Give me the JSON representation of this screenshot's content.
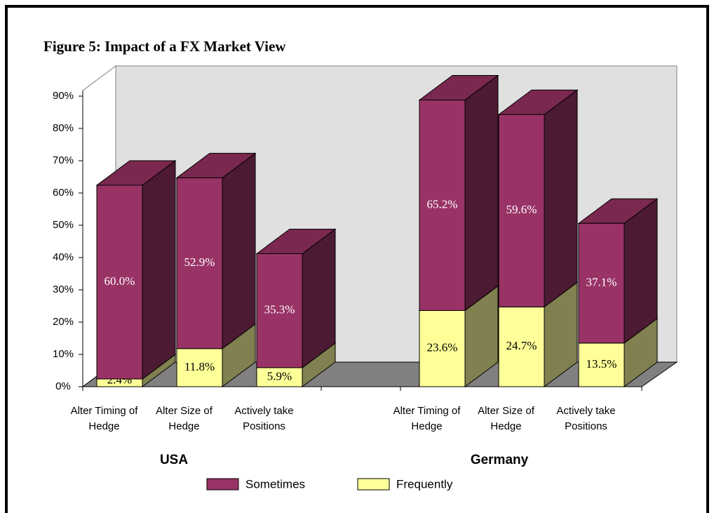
{
  "chart_data": {
    "type": "bar",
    "title": "Figure 5: Impact of a FX Market View",
    "categories": [
      "Alter Timing of Hedge",
      "Alter Size of Hedge",
      "Actively take Positions",
      "Alter Timing of Hedge",
      "Alter Size of Hedge",
      "Actively take Positions"
    ],
    "groups": [
      "USA",
      "Germany"
    ],
    "stacked": true,
    "series": [
      {
        "name": "Frequently",
        "color": "#ffff99",
        "values": [
          2.4,
          11.8,
          5.9,
          23.6,
          24.7,
          13.5
        ],
        "value_labels": [
          "2.4%",
          "11.8%",
          "5.9%",
          "23.6%",
          "24.7%",
          "13.5%"
        ]
      },
      {
        "name": "Sometimes",
        "color": "#993366",
        "values": [
          60.0,
          52.9,
          35.3,
          65.2,
          59.6,
          37.1
        ],
        "value_labels": [
          "60.0%",
          "52.9%",
          "35.3%",
          "65.2%",
          "59.6%",
          "37.1%"
        ]
      }
    ],
    "legend_order": [
      "Sometimes",
      "Frequently"
    ],
    "ylim": [
      0,
      90
    ],
    "yticks": [
      {
        "value": 0,
        "label": "0%"
      },
      {
        "value": 10,
        "label": "10%"
      },
      {
        "value": 20,
        "label": "20%"
      },
      {
        "value": 30,
        "label": "30%"
      },
      {
        "value": 40,
        "label": "40%"
      },
      {
        "value": 50,
        "label": "50%"
      },
      {
        "value": 60,
        "label": "60%"
      },
      {
        "value": 70,
        "label": "70%"
      },
      {
        "value": 80,
        "label": "80%"
      },
      {
        "value": 90,
        "label": "90%"
      }
    ]
  }
}
